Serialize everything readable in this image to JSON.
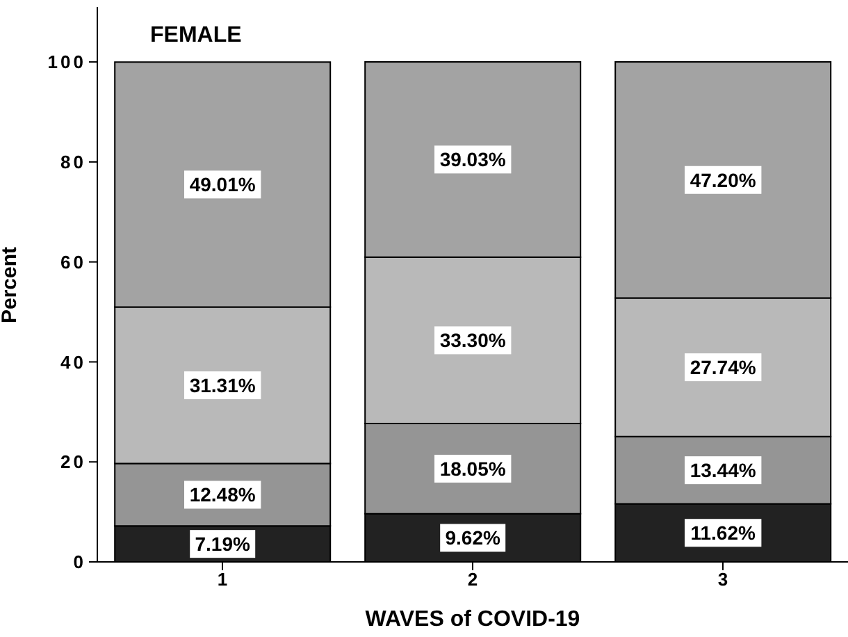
{
  "chart_data": {
    "type": "bar",
    "title": "FEMALE",
    "xlabel": "WAVES of COVID-19",
    "ylabel": "Percent",
    "categories": [
      "1",
      "2",
      "3"
    ],
    "stacked": true,
    "ylim": [
      0,
      111
    ],
    "yticks": [
      0,
      20,
      40,
      60,
      80,
      100
    ],
    "grid": false,
    "legend": false,
    "series": [
      {
        "color": "#222222",
        "values": [
          7.19,
          9.62,
          11.62
        ],
        "value_labels": [
          "7.19%",
          "9.62%",
          "11.62%"
        ]
      },
      {
        "color": "#959595",
        "values": [
          12.48,
          18.05,
          13.44
        ],
        "value_labels": [
          "12.48%",
          "18.05%",
          "13.44%"
        ]
      },
      {
        "color": "#b9b9b9",
        "values": [
          31.31,
          33.3,
          27.74
        ],
        "value_labels": [
          "31.31%",
          "33.30%",
          "27.74%"
        ]
      },
      {
        "color": "#a3a3a3",
        "values": [
          49.01,
          39.03,
          47.2
        ],
        "value_labels": [
          "49.01%",
          "39.03%",
          "47.20%"
        ]
      }
    ]
  }
}
